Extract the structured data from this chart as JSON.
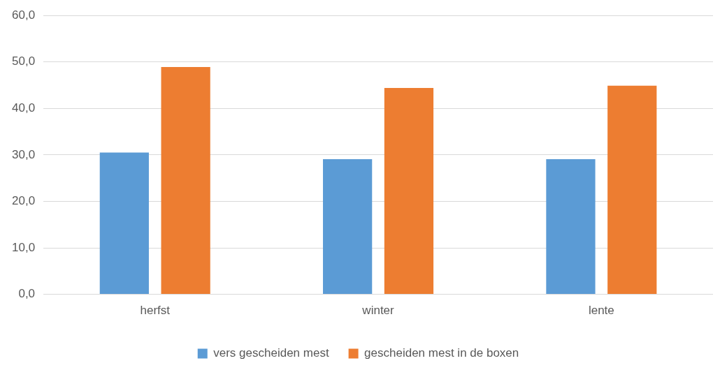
{
  "chart_data": {
    "type": "bar",
    "categories": [
      "herfst",
      "winter",
      "lente"
    ],
    "series": [
      {
        "name": "vers gescheiden mest",
        "color": "#5b9bd5",
        "values": [
          30.5,
          29.1,
          29.1
        ]
      },
      {
        "name": "gescheiden mest in de boxen",
        "color": "#ed7d31",
        "values": [
          48.9,
          44.4,
          44.9
        ]
      }
    ],
    "ylim": [
      0,
      60
    ],
    "yticks": [
      {
        "value": 0,
        "label": "0,0"
      },
      {
        "value": 10,
        "label": "10,0"
      },
      {
        "value": 20,
        "label": "20,0"
      },
      {
        "value": 30,
        "label": "30,0"
      },
      {
        "value": 40,
        "label": "40,0"
      },
      {
        "value": 50,
        "label": "50,0"
      },
      {
        "value": 60,
        "label": "60,0"
      }
    ],
    "grid": "y",
    "legend": "bottom"
  }
}
